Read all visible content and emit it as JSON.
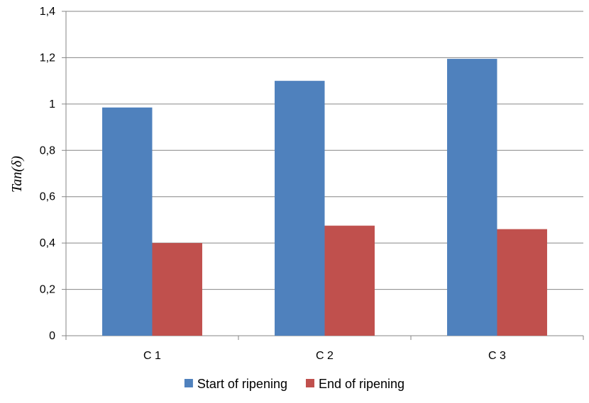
{
  "chart_data": {
    "type": "bar",
    "categories": [
      "C 1",
      "C 2",
      "C 3"
    ],
    "series": [
      {
        "name": "Start of ripening",
        "values": [
          0.985,
          1.1,
          1.195
        ],
        "color": "#4F81BD"
      },
      {
        "name": "End of ripening",
        "values": [
          0.4,
          0.475,
          0.46
        ],
        "color": "#C0504D"
      }
    ],
    "title": "",
    "xlabel": "",
    "ylabel": "Tan(δ)",
    "ylim": [
      0,
      1.4
    ],
    "yticks": [
      "0",
      "0,2",
      "0,4",
      "0,6",
      "0,8",
      "1",
      "1,2",
      "1,4"
    ],
    "grid": true,
    "legend_position": "bottom",
    "gridline_color": "#868686",
    "axis_color": "#868686"
  }
}
